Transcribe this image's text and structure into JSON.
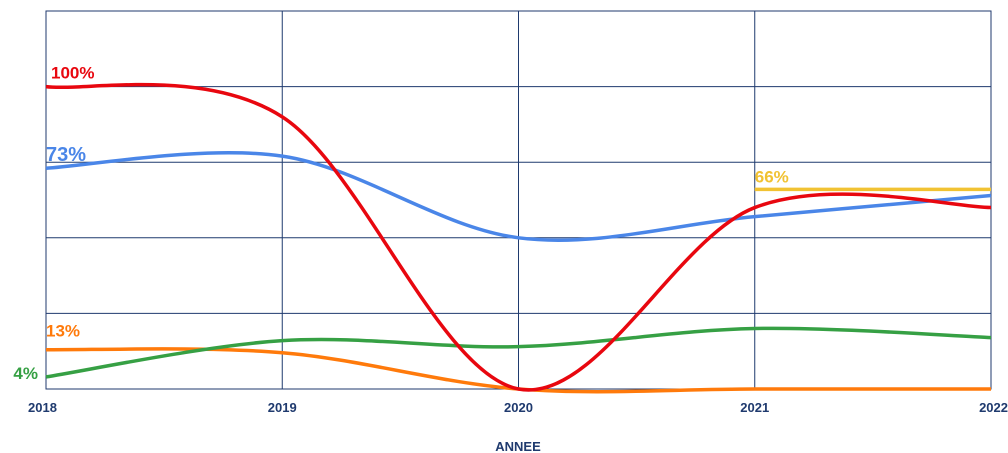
{
  "chart_data": {
    "type": "line",
    "xlabel": "ANNEE",
    "ylabel": "",
    "x": [
      2018,
      2019,
      2020,
      2021,
      2022
    ],
    "xticks": [
      "2018",
      "2019",
      "2020",
      "2021",
      "2022"
    ],
    "ylim": [
      0,
      125
    ],
    "grid": true,
    "legend": "none",
    "series": [
      {
        "name": "",
        "color": "#e8070f",
        "values": [
          100,
          90,
          0,
          60,
          60
        ],
        "label": "100%",
        "label_index": 0
      },
      {
        "name": "",
        "color": "#4a86e8",
        "values": [
          73,
          77,
          50,
          57,
          64
        ],
        "label": "73%",
        "label_index": 0
      },
      {
        "name": "",
        "color": "#f1c232",
        "values": [
          null,
          null,
          null,
          66,
          66
        ],
        "label": "66%",
        "label_index": 3
      },
      {
        "name": "",
        "color": "#ff7a0b",
        "values": [
          13,
          12,
          0,
          0,
          0
        ],
        "label": "13%",
        "label_index": 0
      },
      {
        "name": "",
        "color": "#36a044",
        "values": [
          4,
          16,
          14,
          20,
          17
        ],
        "label": "4%",
        "label_index": 0
      }
    ]
  }
}
